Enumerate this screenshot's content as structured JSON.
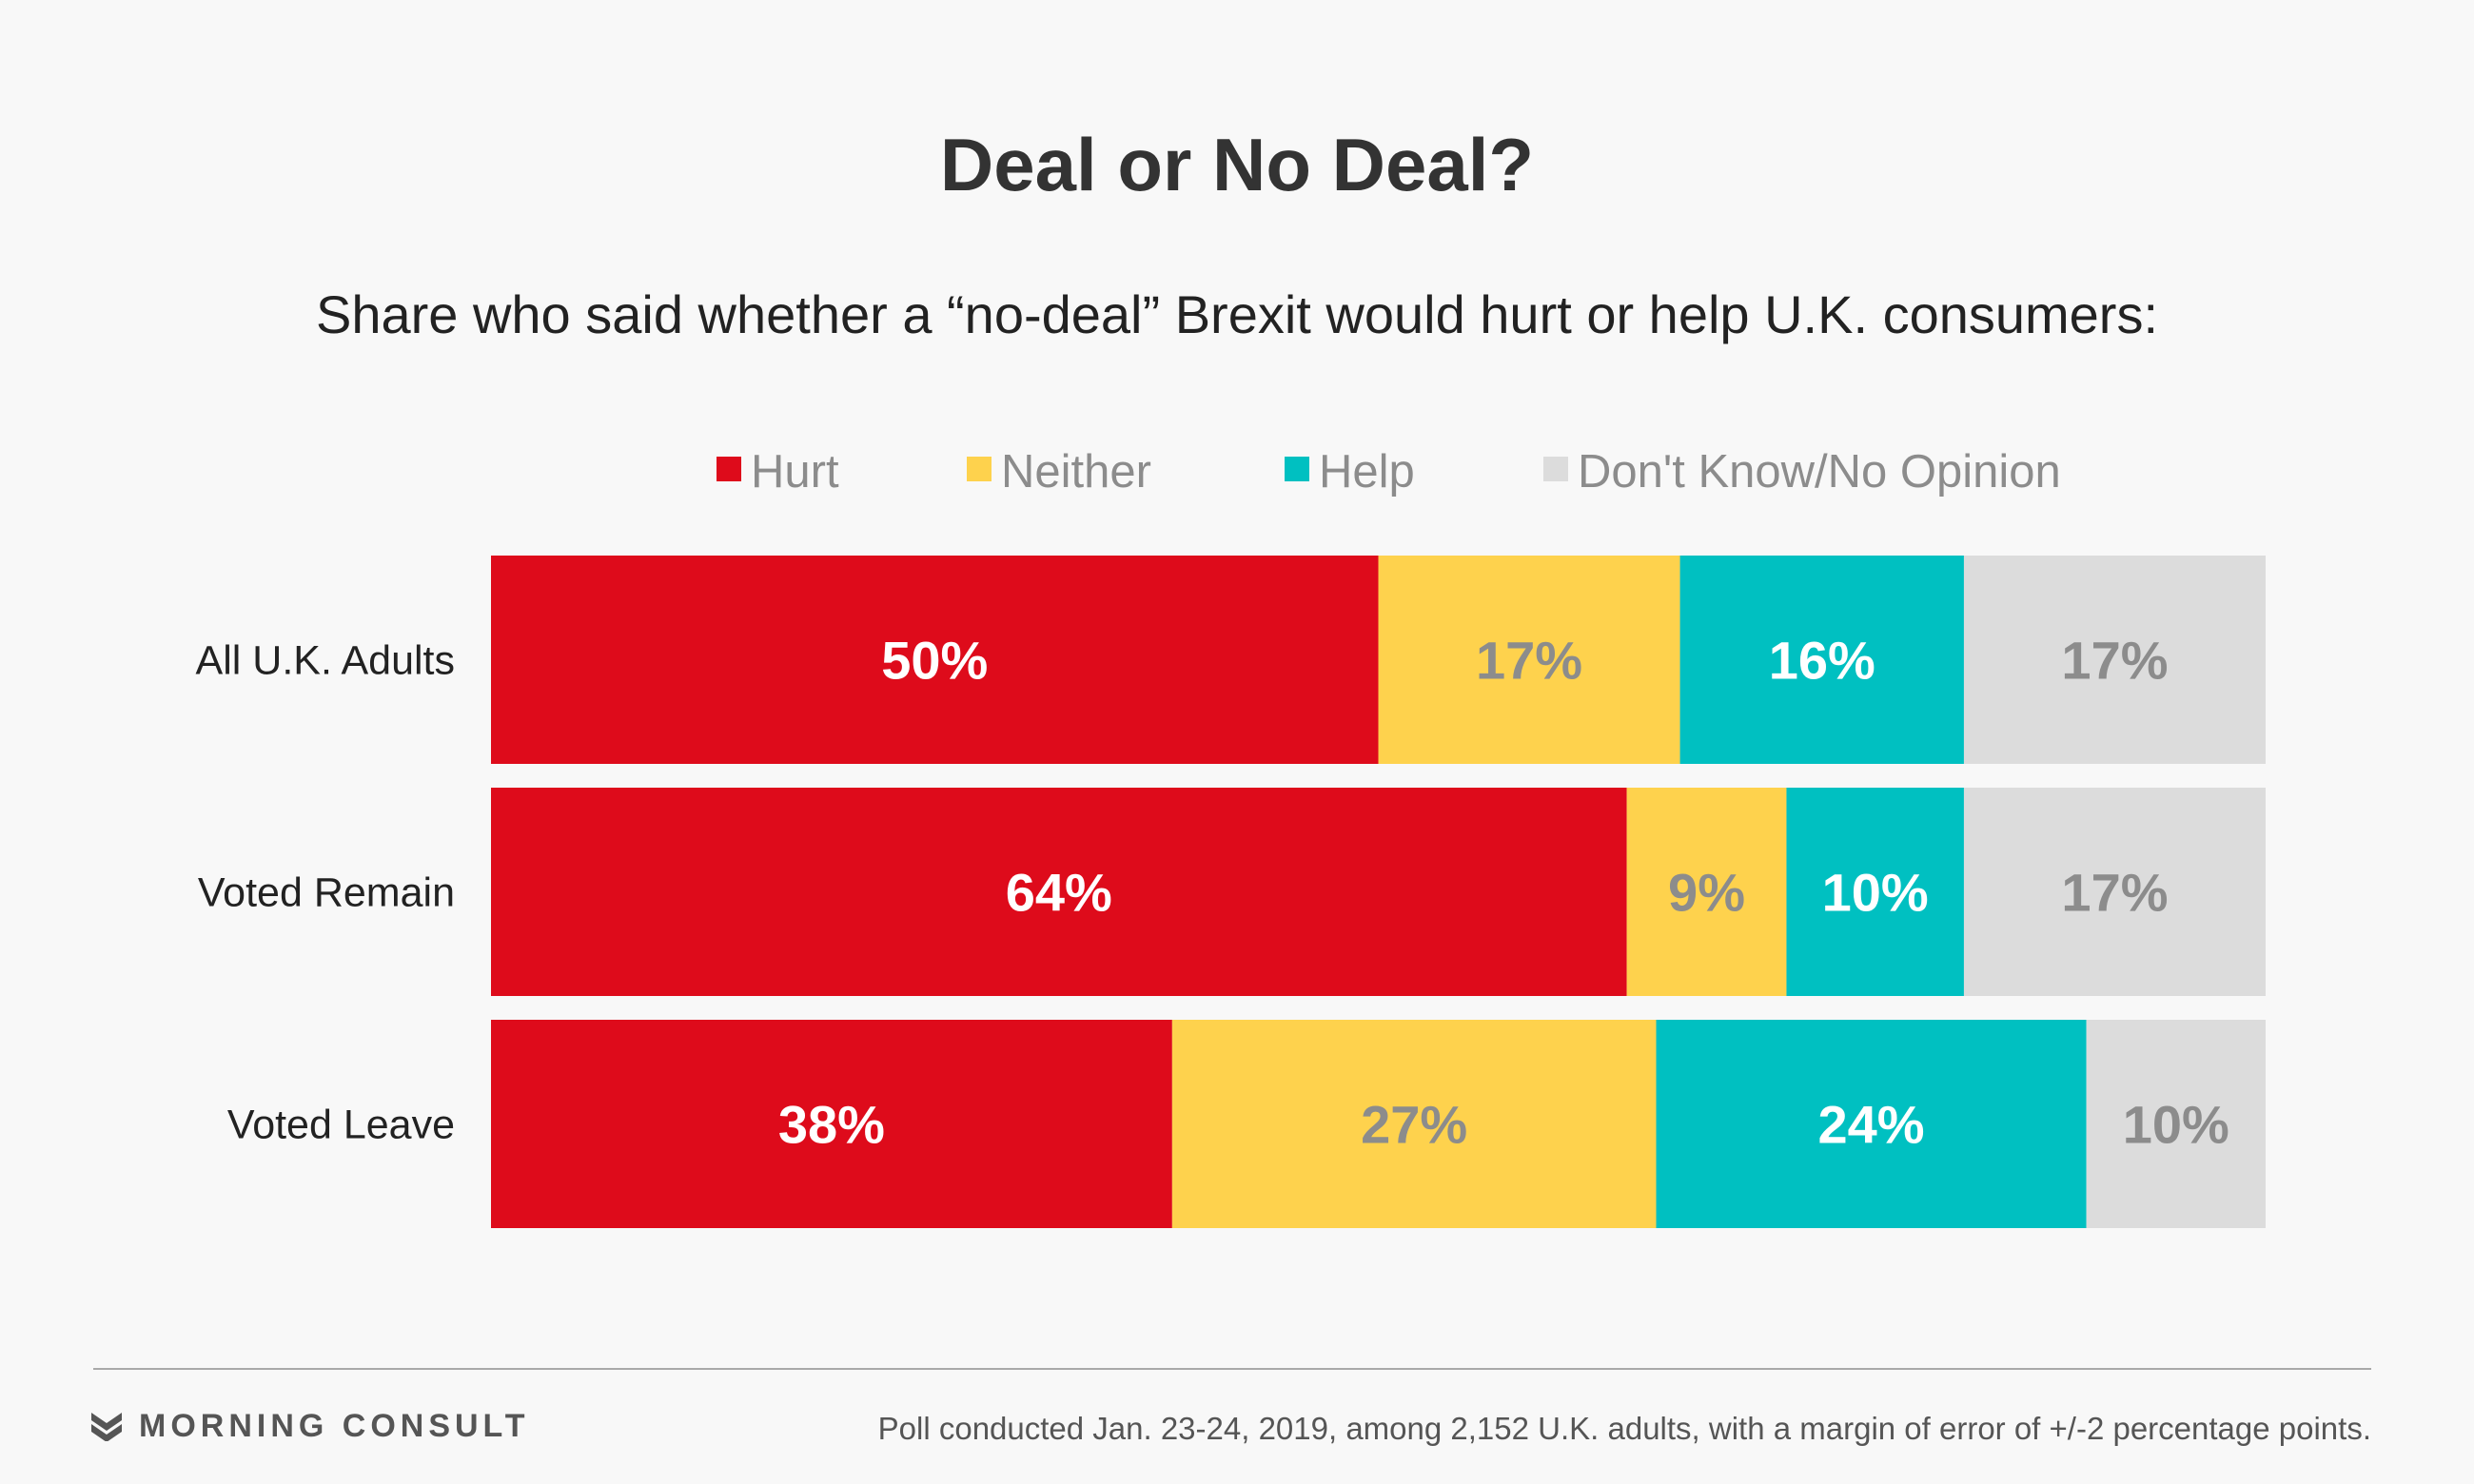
{
  "chart_data": {
    "type": "bar",
    "orientation": "horizontal",
    "stacked": true,
    "title": "Deal or No Deal?",
    "subtitle": "Share who said whether a “no-deal” Brexit would hurt or help U.K. consumers:",
    "categories": [
      "All U.K. Adults",
      "Voted Remain",
      "Voted Leave"
    ],
    "series": [
      {
        "name": "Hurt",
        "color": "#de0b1b",
        "label_color": "#ffffff",
        "values": [
          50,
          64,
          38
        ]
      },
      {
        "name": "Neither",
        "color": "#fed24d",
        "label_color": "#8c8c8c",
        "values": [
          17,
          9,
          27
        ]
      },
      {
        "name": "Help",
        "color": "#00c0c1",
        "label_color": "#ffffff",
        "values": [
          16,
          10,
          24
        ]
      },
      {
        "name": "Don't Know/No Opinion",
        "color": "#dcdcdc",
        "label_color": "#8c8c8c",
        "values": [
          17,
          17,
          10
        ]
      }
    ],
    "value_suffix": "%",
    "legend_position": "top",
    "grid": false
  },
  "footer": {
    "brand": "MORNING CONSULT",
    "brand_icon": "morning-consult-logo-icon",
    "note": "Poll conducted Jan. 23-24, 2019, among 2,152 U.K. adults, with a margin of error of +/-2 percentage points."
  }
}
